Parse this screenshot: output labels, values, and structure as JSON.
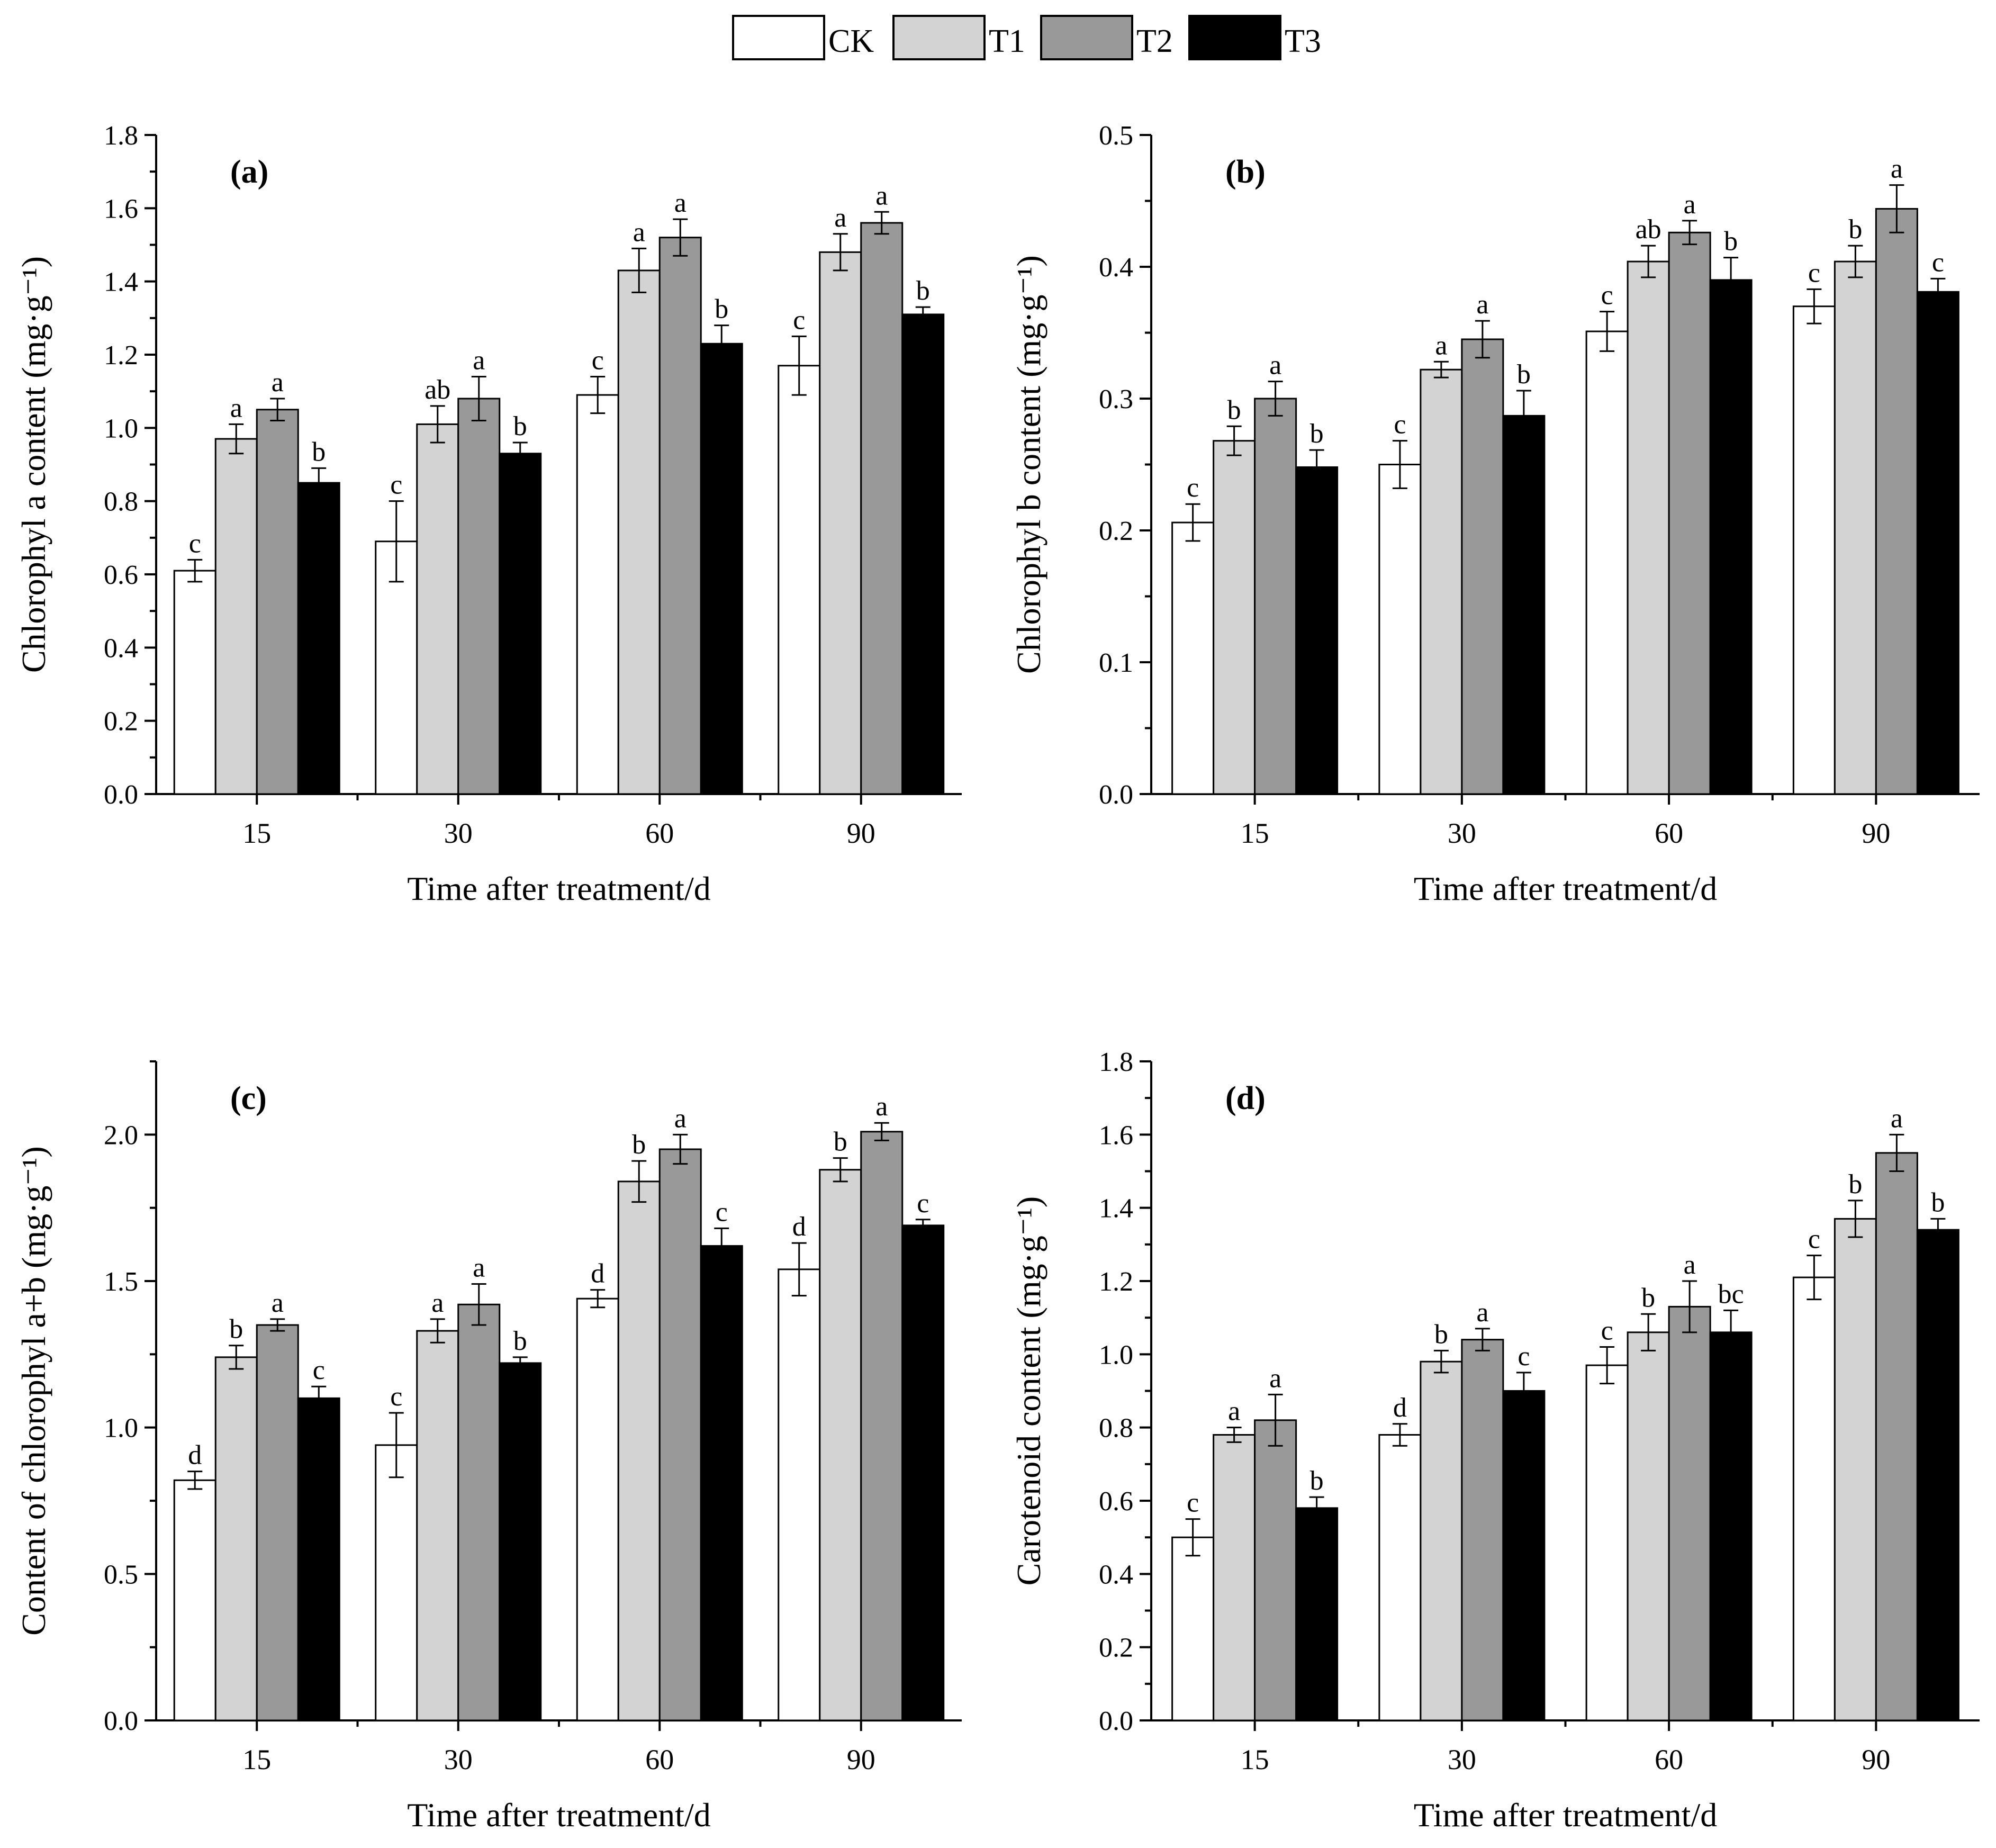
{
  "legend": {
    "items": [
      {
        "name": "CK",
        "color": "#ffffff"
      },
      {
        "name": "T1",
        "color": "#d3d3d3"
      },
      {
        "name": "T2",
        "color": "#999999"
      },
      {
        "name": "T3",
        "color": "#000000"
      }
    ]
  },
  "chart_data": [
    {
      "type": "bar",
      "panel_label": "(a)",
      "ylabel": "Chlorophyl a content (mg·g⁻¹)",
      "xlabel": "Time after treatment/d",
      "categories": [
        "15",
        "30",
        "60",
        "90"
      ],
      "ylim": [
        0,
        1.8
      ],
      "yticks": [
        0.0,
        0.2,
        0.4,
        0.6,
        0.8,
        1.0,
        1.2,
        1.4,
        1.6,
        1.8
      ],
      "ytick_labels": [
        "0.0",
        "0.2",
        "0.4",
        "0.6",
        "0.8",
        "1.0",
        "1.2",
        "1.4",
        "1.6",
        "1.8"
      ],
      "series": [
        {
          "name": "CK",
          "values": [
            0.61,
            0.69,
            1.09,
            1.17
          ],
          "errors": [
            0.03,
            0.11,
            0.05,
            0.08
          ],
          "letters": [
            "c",
            "c",
            "c",
            "c"
          ]
        },
        {
          "name": "T1",
          "values": [
            0.97,
            1.01,
            1.43,
            1.48
          ],
          "errors": [
            0.04,
            0.05,
            0.06,
            0.05
          ],
          "letters": [
            "a",
            "ab",
            "a",
            "a"
          ]
        },
        {
          "name": "T2",
          "values": [
            1.05,
            1.08,
            1.52,
            1.56
          ],
          "errors": [
            0.03,
            0.06,
            0.05,
            0.03
          ],
          "letters": [
            "a",
            "a",
            "a",
            "a"
          ]
        },
        {
          "name": "T3",
          "values": [
            0.85,
            0.93,
            1.23,
            1.31
          ],
          "errors": [
            0.04,
            0.03,
            0.05,
            0.02
          ],
          "letters": [
            "b",
            "b",
            "b",
            "b"
          ]
        }
      ]
    },
    {
      "type": "bar",
      "panel_label": "(b)",
      "ylabel": "Chlorophyl b content (mg·g⁻¹)",
      "xlabel": "Time after treatment/d",
      "categories": [
        "15",
        "30",
        "60",
        "90"
      ],
      "ylim": [
        0,
        0.5
      ],
      "yticks": [
        0.0,
        0.1,
        0.2,
        0.3,
        0.4,
        0.5
      ],
      "ytick_labels": [
        "0.0",
        "0.1",
        "0.2",
        "0.3",
        "0.4",
        "0.5"
      ],
      "series": [
        {
          "name": "CK",
          "values": [
            0.206,
            0.25,
            0.351,
            0.37
          ],
          "errors": [
            0.014,
            0.018,
            0.015,
            0.013
          ],
          "letters": [
            "c",
            "c",
            "c",
            "c"
          ]
        },
        {
          "name": "T1",
          "values": [
            0.268,
            0.322,
            0.404,
            0.404
          ],
          "errors": [
            0.011,
            0.006,
            0.012,
            0.012
          ],
          "letters": [
            "b",
            "a",
            "ab",
            "b"
          ]
        },
        {
          "name": "T2",
          "values": [
            0.3,
            0.345,
            0.426,
            0.444
          ],
          "errors": [
            0.013,
            0.014,
            0.009,
            0.018
          ],
          "letters": [
            "a",
            "a",
            "a",
            "a"
          ]
        },
        {
          "name": "T3",
          "values": [
            0.248,
            0.287,
            0.39,
            0.381
          ],
          "errors": [
            0.013,
            0.019,
            0.017,
            0.01
          ],
          "letters": [
            "b",
            "b",
            "b",
            "c"
          ]
        }
      ]
    },
    {
      "type": "bar",
      "panel_label": "(c)",
      "ylabel": "Content of chlorophyl a+b (mg·g⁻¹)",
      "xlabel": "Time after treatment/d",
      "categories": [
        "15",
        "30",
        "60",
        "90"
      ],
      "ylim": [
        0,
        2.25
      ],
      "yticks": [
        0.0,
        0.5,
        1.0,
        1.5,
        2.0
      ],
      "ytick_labels": [
        "0.0",
        "0.5",
        "1.0",
        "1.5",
        "2.0"
      ],
      "series": [
        {
          "name": "CK",
          "values": [
            0.82,
            0.94,
            1.44,
            1.54
          ],
          "errors": [
            0.03,
            0.11,
            0.03,
            0.09
          ],
          "letters": [
            "d",
            "c",
            "d",
            "d"
          ]
        },
        {
          "name": "T1",
          "values": [
            1.24,
            1.33,
            1.84,
            1.88
          ],
          "errors": [
            0.04,
            0.04,
            0.07,
            0.04
          ],
          "letters": [
            "b",
            "a",
            "b",
            "b"
          ]
        },
        {
          "name": "T2",
          "values": [
            1.35,
            1.42,
            1.95,
            2.01
          ],
          "errors": [
            0.02,
            0.07,
            0.05,
            0.03
          ],
          "letters": [
            "a",
            "a",
            "a",
            "a"
          ]
        },
        {
          "name": "T3",
          "values": [
            1.1,
            1.22,
            1.62,
            1.69
          ],
          "errors": [
            0.04,
            0.02,
            0.06,
            0.02
          ],
          "letters": [
            "c",
            "b",
            "c",
            "c"
          ]
        }
      ]
    },
    {
      "type": "bar",
      "panel_label": "(d)",
      "ylabel": "Carotenoid content (mg·g⁻¹)",
      "xlabel": "Time after treatment/d",
      "categories": [
        "15",
        "30",
        "60",
        "90"
      ],
      "ylim": [
        0,
        1.8
      ],
      "yticks": [
        0.0,
        0.2,
        0.4,
        0.6,
        0.8,
        1.0,
        1.2,
        1.4,
        1.6,
        1.8
      ],
      "ytick_labels": [
        "0.0",
        "0.2",
        "0.4",
        "0.6",
        "0.8",
        "1.0",
        "1.2",
        "1.4",
        "1.6",
        "1.8"
      ],
      "series": [
        {
          "name": "CK",
          "values": [
            0.5,
            0.78,
            0.97,
            1.21
          ],
          "errors": [
            0.05,
            0.03,
            0.05,
            0.06
          ],
          "letters": [
            "c",
            "d",
            "c",
            "c"
          ]
        },
        {
          "name": "T1",
          "values": [
            0.78,
            0.98,
            1.06,
            1.37
          ],
          "errors": [
            0.02,
            0.03,
            0.05,
            0.05
          ],
          "letters": [
            "a",
            "b",
            "b",
            "b"
          ]
        },
        {
          "name": "T2",
          "values": [
            0.82,
            1.04,
            1.13,
            1.55
          ],
          "errors": [
            0.07,
            0.03,
            0.07,
            0.05
          ],
          "letters": [
            "a",
            "a",
            "a",
            "a"
          ]
        },
        {
          "name": "T3",
          "values": [
            0.58,
            0.9,
            1.06,
            1.34
          ],
          "errors": [
            0.03,
            0.05,
            0.06,
            0.03
          ],
          "letters": [
            "b",
            "c",
            "bc",
            "b"
          ]
        }
      ]
    }
  ]
}
